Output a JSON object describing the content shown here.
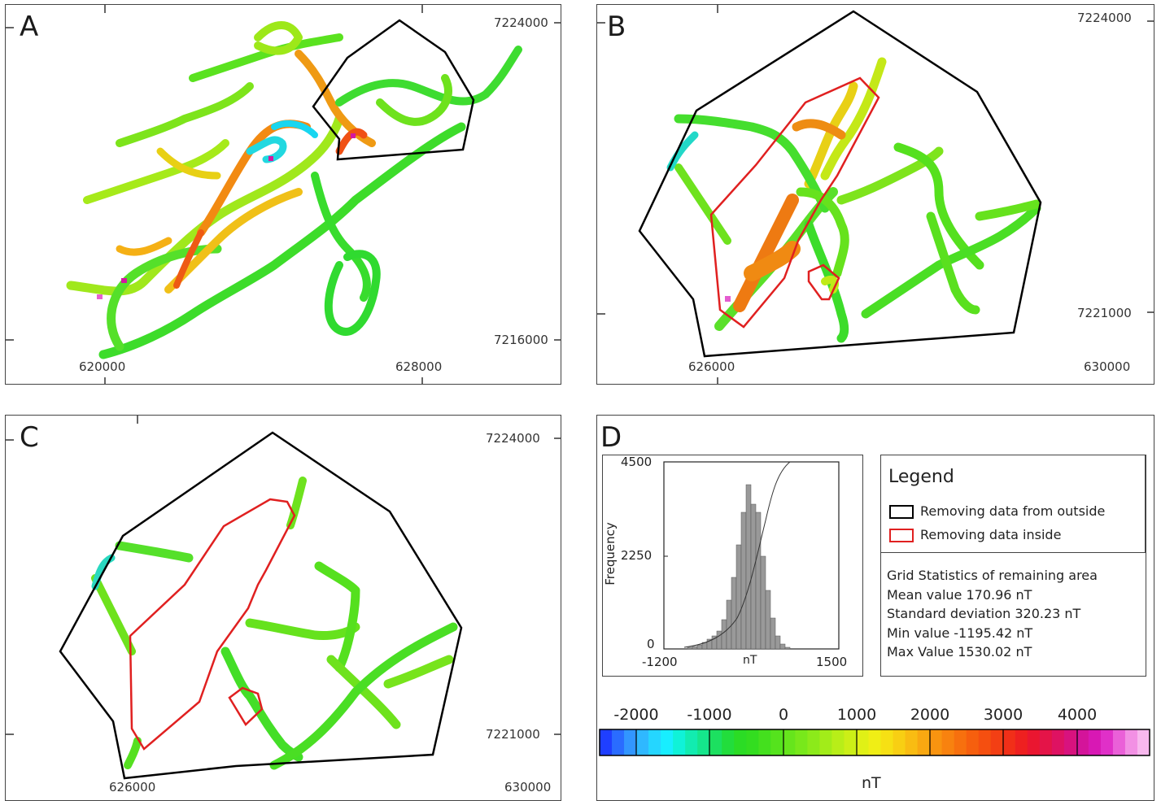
{
  "panels": {
    "A": {
      "letter": "A",
      "tick_labels": {
        "x_left": "620000",
        "x_right": "628000",
        "y_top": "7224000",
        "y_bottom": "7216000"
      }
    },
    "B": {
      "letter": "B",
      "tick_labels": {
        "x_left": "626000",
        "x_right": "630000",
        "y_top": "7224000",
        "y_bottom": "7221000"
      }
    },
    "C": {
      "letter": "C",
      "tick_labels": {
        "x_left": "626000",
        "x_right": "630000",
        "y_top": "7224000",
        "y_bottom": "7221000"
      }
    },
    "D": {
      "letter": "D",
      "histogram": {
        "ylabel": "Frequency",
        "xlabel": "nT",
        "x_ticks": [
          "-1200",
          "1500"
        ],
        "y_ticks": [
          "4500",
          "2250",
          "0"
        ],
        "bar_color": "#999999"
      },
      "legend": {
        "title": "Legend",
        "items": [
          {
            "label": "Removing data from outside",
            "color": "#000000"
          },
          {
            "label": "Removing data inside",
            "color": "#e02020"
          }
        ]
      },
      "stats": {
        "title": "Grid Statistics of remaining area",
        "mean": "Mean value 170.96 nT",
        "std": "Standard deviation 320.23 nT",
        "min": "Min value -1195.42 nT",
        "max": "Max Value 1530.02 nT"
      },
      "colorbar": {
        "labels": [
          "-2000",
          "-1000",
          "0",
          "1000",
          "2000",
          "3000",
          "4000"
        ],
        "unit": "nT",
        "colors": [
          "#1f3fff",
          "#2a6cff",
          "#3296ff",
          "#2fb8ff",
          "#25d6ff",
          "#18eeff",
          "#10f2d8",
          "#12ecb0",
          "#15e68c",
          "#1ce060",
          "#22dd3c",
          "#2bdc25",
          "#33dd20",
          "#44e01e",
          "#55e31d",
          "#66e51c",
          "#78e81b",
          "#8cea1a",
          "#a2ec19",
          "#b8ee18",
          "#ccef17",
          "#e0f016",
          "#f0ee15",
          "#f6e014",
          "#f8cf13",
          "#f9bc12",
          "#f9a811",
          "#f99410",
          "#f8820f",
          "#f7700e",
          "#f65f0e",
          "#f54f10",
          "#f33f14",
          "#f12f18",
          "#ee2020",
          "#ea1630",
          "#e41448",
          "#de1262",
          "#d8127e",
          "#d4149a",
          "#d818b4",
          "#e030c8",
          "#ea60d8",
          "#f290e4",
          "#f8b8ee"
        ]
      }
    }
  }
}
